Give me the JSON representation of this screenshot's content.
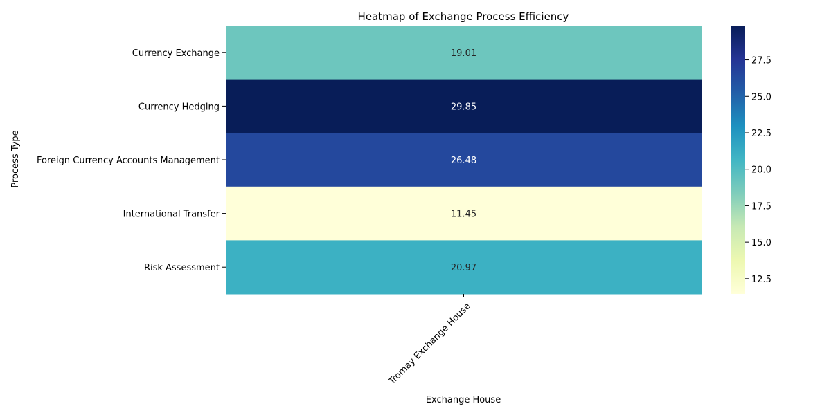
{
  "chart_data": {
    "type": "heatmap",
    "title": "Heatmap of Exchange Process Efficiency",
    "xlabel": "Exchange House",
    "ylabel": "Process Type",
    "x_categories": [
      "Tromay Exchange House"
    ],
    "y_categories": [
      "Currency Exchange",
      "Currency Hedging",
      "Foreign Currency Accounts Management",
      "International Transfer",
      "Risk Assessment"
    ],
    "values": [
      [
        19.01
      ],
      [
        29.85
      ],
      [
        26.48
      ],
      [
        11.45
      ],
      [
        20.97
      ]
    ],
    "value_labels": [
      "19.01",
      "29.85",
      "26.48",
      "11.45",
      "20.97"
    ],
    "colormap": "YlGnBu",
    "colorbar": {
      "min": 11.45,
      "max": 29.85,
      "ticks": [
        12.5,
        15.0,
        17.5,
        20.0,
        22.5,
        25.0,
        27.5
      ],
      "tick_labels": [
        "12.5",
        "15.0",
        "17.5",
        "20.0",
        "22.5",
        "25.0",
        "27.5"
      ]
    },
    "colors": {
      "stops": [
        "#ffffd9",
        "#edf8b1",
        "#c7e9b4",
        "#7fcdbb",
        "#41b6c4",
        "#1d91c0",
        "#225ea8",
        "#253494",
        "#081d58"
      ],
      "annotation_dark": "#262626",
      "annotation_light": "#ffffff"
    }
  }
}
